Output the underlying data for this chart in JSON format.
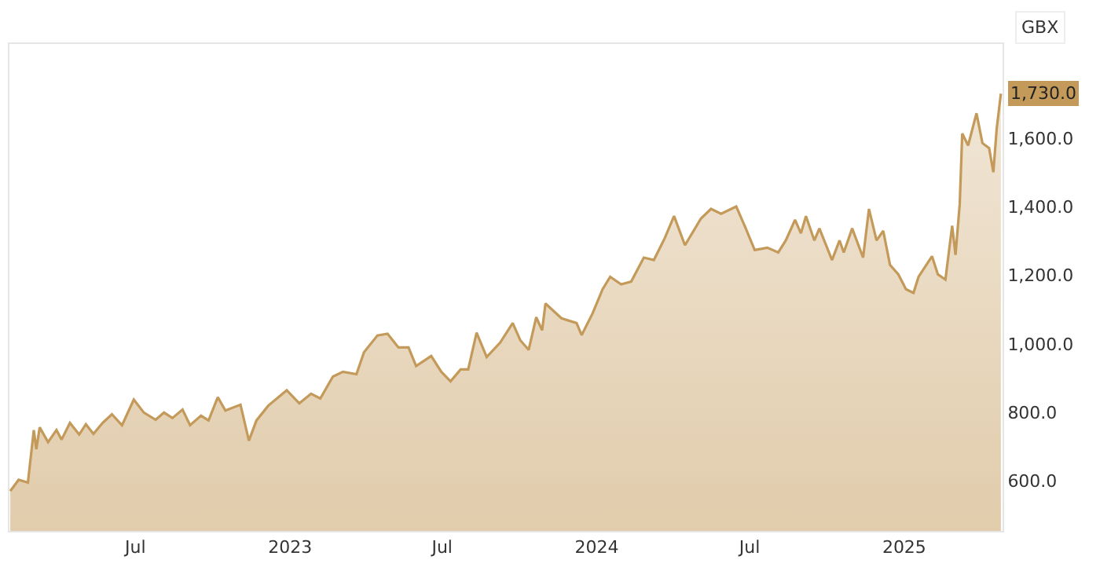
{
  "chart_data": {
    "type": "area",
    "ylabel": "GBX",
    "x": [
      "2022-02-02",
      "2022-02-12",
      "2022-02-23",
      "2022-03-02",
      "2022-03-05",
      "2022-03-09",
      "2022-03-19",
      "2022-03-29",
      "2022-04-04",
      "2022-04-14",
      "2022-04-25",
      "2022-05-03",
      "2022-05-12",
      "2022-05-23",
      "2022-06-03",
      "2022-06-15",
      "2022-06-29",
      "2022-07-11",
      "2022-07-25",
      "2022-08-04",
      "2022-08-14",
      "2022-08-26",
      "2022-09-04",
      "2022-09-17",
      "2022-09-26",
      "2022-10-07",
      "2022-10-16",
      "2022-11-03",
      "2022-11-13",
      "2022-11-22",
      "2022-12-06",
      "2022-12-28",
      "2023-01-12",
      "2023-01-26",
      "2023-02-06",
      "2023-02-21",
      "2023-03-05",
      "2023-03-21",
      "2023-03-30",
      "2023-04-15",
      "2023-04-27",
      "2023-05-10",
      "2023-05-22",
      "2023-05-31",
      "2023-06-18",
      "2023-06-30",
      "2023-07-11",
      "2023-07-23",
      "2023-08-01",
      "2023-08-11",
      "2023-08-23",
      "2023-09-08",
      "2023-09-23",
      "2023-10-02",
      "2023-10-12",
      "2023-10-21",
      "2023-10-28",
      "2023-11-01",
      "2023-11-20",
      "2023-12-08",
      "2023-12-14",
      "2023-12-27",
      "2024-01-08",
      "2024-01-17",
      "2024-01-30",
      "2024-02-11",
      "2024-02-26",
      "2024-03-09",
      "2024-03-22",
      "2024-04-02",
      "2024-04-15",
      "2024-04-27",
      "2024-05-04",
      "2024-05-16",
      "2024-05-28",
      "2024-06-15",
      "2024-06-25",
      "2024-07-07",
      "2024-07-22",
      "2024-08-04",
      "2024-08-13",
      "2024-08-24",
      "2024-08-31",
      "2024-09-06",
      "2024-09-16",
      "2024-09-22",
      "2024-10-07",
      "2024-10-16",
      "2024-10-21",
      "2024-10-31",
      "2024-11-13",
      "2024-11-20",
      "2024-11-29",
      "2024-12-07",
      "2024-12-15",
      "2024-12-25",
      "2025-01-03",
      "2025-01-12",
      "2025-01-18",
      "2025-02-03",
      "2025-02-10",
      "2025-02-19",
      "2025-02-27",
      "2025-03-03",
      "2025-03-08",
      "2025-03-11",
      "2025-03-18",
      "2025-03-28",
      "2025-04-04",
      "2025-04-12",
      "2025-04-17",
      "2025-04-21",
      "2025-04-26"
    ],
    "series": [
      {
        "color": "#c49a5a",
        "values": [
          571,
          604,
          596,
          749,
          693,
          757,
          714,
          749,
          721,
          770,
          736,
          766,
          738,
          770,
          795,
          763,
          838,
          800,
          779,
          800,
          784,
          809,
          763,
          791,
          777,
          845,
          806,
          823,
          718,
          777,
          820,
          865,
          827,
          855,
          841,
          905,
          919,
          912,
          976,
          1025,
          1030,
          990,
          990,
          936,
          965,
          919,
          891,
          926,
          926,
          1033,
          962,
          1004,
          1061,
          1011,
          983,
          1078,
          1040,
          1118,
          1075,
          1061,
          1026,
          1089,
          1160,
          1196,
          1174,
          1182,
          1252,
          1245,
          1309,
          1373,
          1288,
          1337,
          1366,
          1394,
          1380,
          1401,
          1345,
          1274,
          1281,
          1267,
          1302,
          1362,
          1323,
          1373,
          1302,
          1337,
          1245,
          1302,
          1267,
          1337,
          1252,
          1394,
          1302,
          1330,
          1231,
          1203,
          1160,
          1149,
          1196,
          1256,
          1203,
          1188,
          1345,
          1260,
          1408,
          1614,
          1579,
          1673,
          1586,
          1571,
          1501,
          1628,
          1730
        ]
      }
    ],
    "xlim": [
      "2022-02-01",
      "2025-04-28"
    ],
    "xticks": [
      {
        "value": "2022-07-01",
        "label": "Jul"
      },
      {
        "value": "2023-01-01",
        "label": "2023"
      },
      {
        "value": "2023-07-01",
        "label": "Jul"
      },
      {
        "value": "2024-01-01",
        "label": "2024"
      },
      {
        "value": "2024-07-01",
        "label": "Jul"
      },
      {
        "value": "2025-01-01",
        "label": "2025"
      }
    ],
    "ylim": [
      455,
      1875
    ],
    "yticks": [
      {
        "value": 600,
        "label": "600.0"
      },
      {
        "value": 800,
        "label": "800.0"
      },
      {
        "value": 1000,
        "label": "1,000.0"
      },
      {
        "value": 1200,
        "label": "1,200.0"
      },
      {
        "value": 1400,
        "label": "1,400.0"
      },
      {
        "value": 1600,
        "label": "1,600.0"
      }
    ],
    "annotations": [
      {
        "text": "1,730.0",
        "x": "2025-04-26",
        "y": 1730
      }
    ]
  }
}
